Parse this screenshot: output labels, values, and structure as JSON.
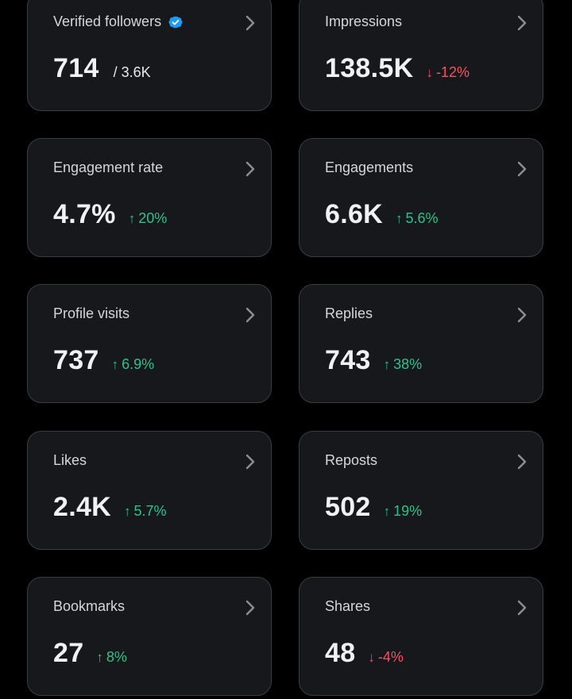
{
  "cards": [
    {
      "title": "Verified followers",
      "value": "714",
      "sub": "/ 3.6K",
      "delta": "",
      "direction": "",
      "badge": true
    },
    {
      "title": "Impressions",
      "value": "138.5K",
      "sub": "",
      "delta": "-12%",
      "direction": "down"
    },
    {
      "title": "Engagement rate",
      "value": "4.7%",
      "sub": "",
      "delta": "20%",
      "direction": "up"
    },
    {
      "title": "Engagements",
      "value": "6.6K",
      "sub": "",
      "delta": "5.6%",
      "direction": "up"
    },
    {
      "title": "Profile visits",
      "value": "737",
      "sub": "",
      "delta": "6.9%",
      "direction": "up"
    },
    {
      "title": "Replies",
      "value": "743",
      "sub": "",
      "delta": "38%",
      "direction": "up"
    },
    {
      "title": "Likes",
      "value": "2.4K",
      "sub": "",
      "delta": "5.7%",
      "direction": "up"
    },
    {
      "title": "Reposts",
      "value": "502",
      "sub": "",
      "delta": "19%",
      "direction": "up"
    },
    {
      "title": "Bookmarks",
      "value": "27",
      "sub": "",
      "delta": "8%",
      "direction": "up"
    },
    {
      "title": "Shares",
      "value": "48",
      "sub": "",
      "delta": "-4%",
      "direction": "down"
    }
  ],
  "icons": {
    "badge": "verified-badge-icon",
    "chevron": "chevron-right-icon",
    "up": "arrow-up-icon",
    "down": "arrow-down-icon"
  },
  "colors": {
    "up": "#2ec28a",
    "down": "#f4525f",
    "badge": "#1d9bf0",
    "card_bg": "#16181c",
    "card_border": "#3a3d42"
  }
}
